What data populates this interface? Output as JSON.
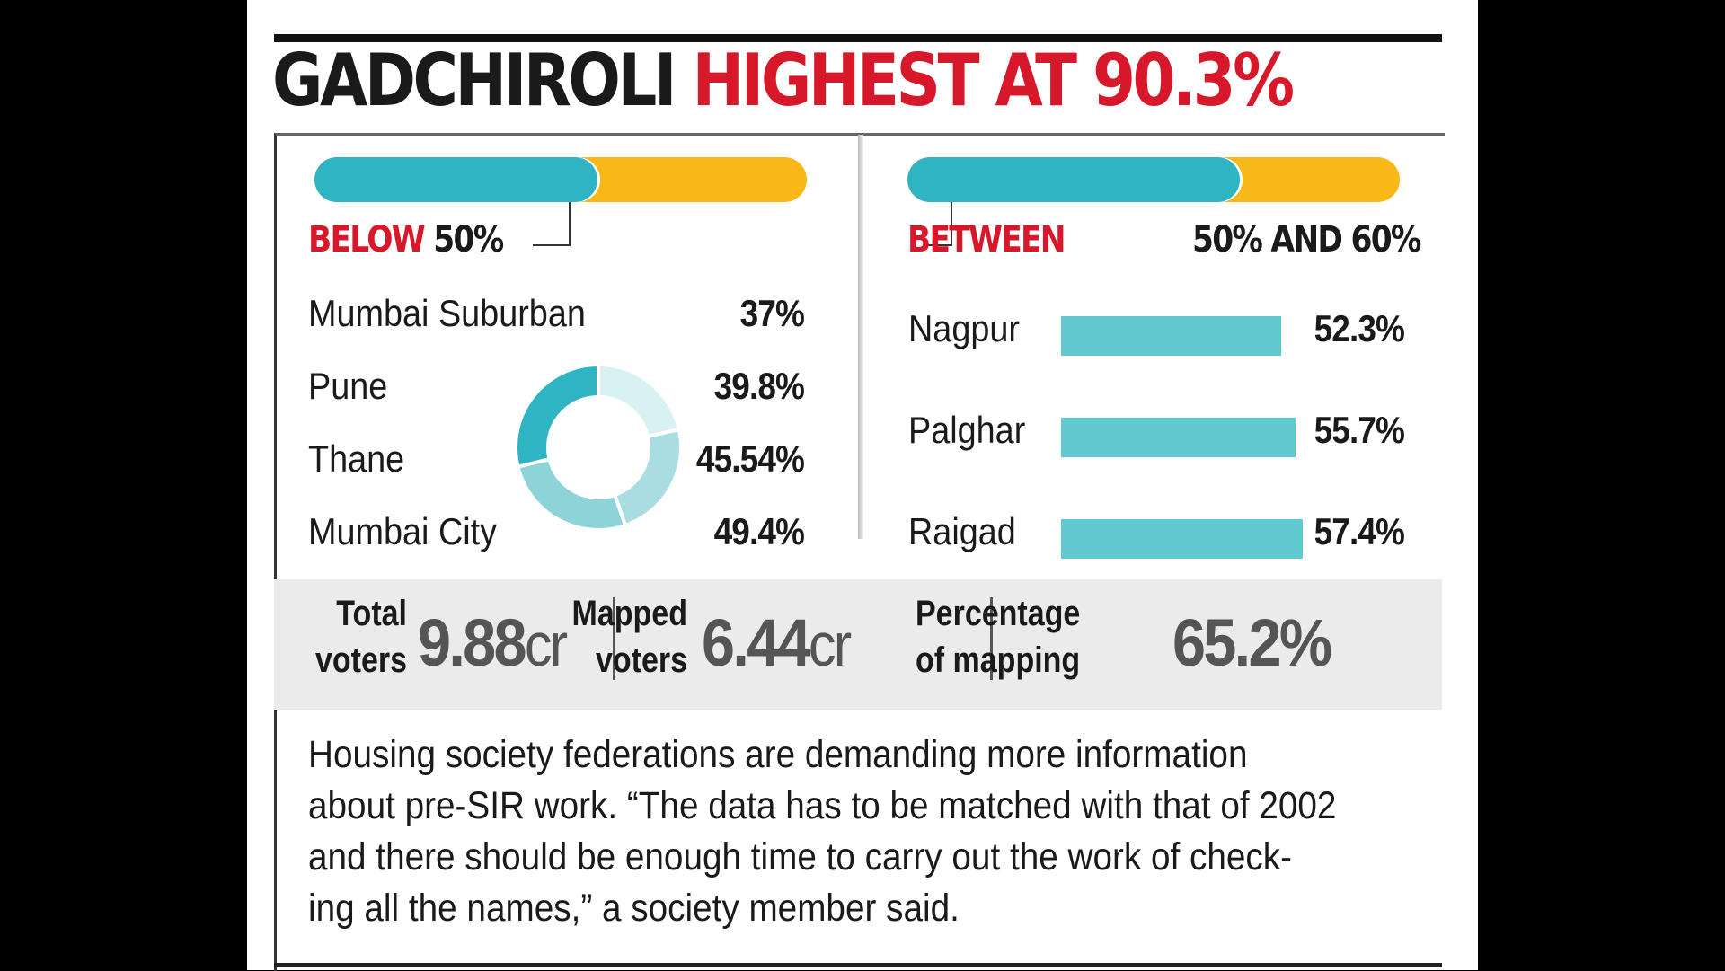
{
  "title": {
    "part1": "GADCHIROLI",
    "part2": "HIGHEST AT 90.3%"
  },
  "colors": {
    "red": "#d7182a",
    "teal": "#2fb4c3",
    "orange": "#f7b818",
    "bar": "#62c9d0",
    "stats_bg": "#ebebeb"
  },
  "chart_data": [
    {
      "type": "pie",
      "heading_red": "BELOW",
      "heading_rest": "50%",
      "categories": [
        "Mumbai Suburban",
        "Pune",
        "Thane",
        "Mumbai City"
      ],
      "labels": [
        "37%",
        "39.8%",
        "45.54%",
        "49.4%"
      ],
      "values": [
        37,
        39.8,
        45.54,
        49.4
      ]
    },
    {
      "type": "bar",
      "heading_red": "BETWEEN",
      "heading_rest": "50% AND 60%",
      "categories": [
        "Nagpur",
        "Palghar",
        "Raigad"
      ],
      "labels": [
        "52.3%",
        "55.7%",
        "57.4%"
      ],
      "values": [
        52.3,
        55.7,
        57.4
      ]
    }
  ],
  "stats": [
    {
      "label_line1": "Total",
      "label_line2": "voters",
      "value": "9.88",
      "unit": "cr"
    },
    {
      "label_line1": "Mapped",
      "label_line2": "voters",
      "value": "6.44",
      "unit": "cr"
    },
    {
      "label_line1": "Percentage",
      "label_line2": "of mapping",
      "value": "65.2%",
      "unit": ""
    }
  ],
  "note_lines": [
    "Housing society federations are demanding more information",
    "about pre-SIR work. “The data has to be matched with that of 2002",
    "and there should be enough time to carry out the work of check-",
    "ing all the names,” a society member said."
  ]
}
